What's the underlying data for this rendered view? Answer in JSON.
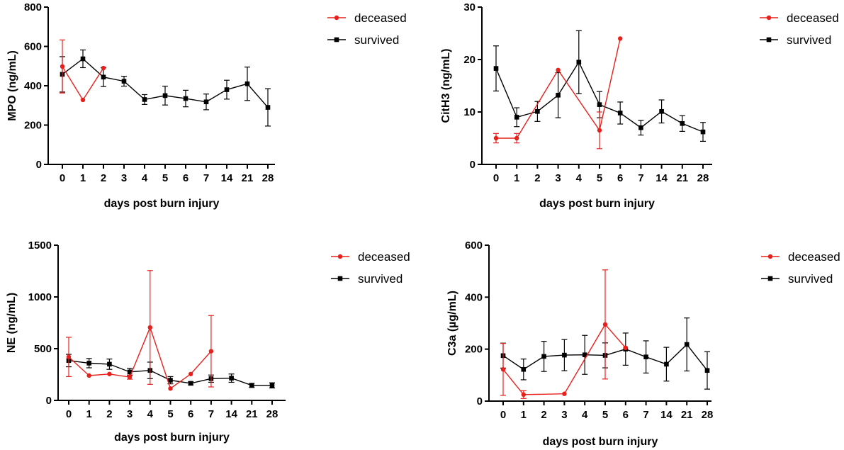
{
  "colors": {
    "deceased": "#e8201c",
    "survived": "#000000"
  },
  "chart_data": [
    {
      "type": "line",
      "ylabel": "MPO (ng/mL)",
      "xlabel": "days post burn injury",
      "ylim": [
        0,
        800
      ],
      "yticks": [
        0,
        200,
        400,
        600,
        800
      ],
      "categories": [
        "0",
        "1",
        "2",
        "3",
        "4",
        "5",
        "6",
        "7",
        "14",
        "21",
        "28"
      ],
      "legend_position": "top-right",
      "series": [
        {
          "name": "deceased",
          "marker": "circle",
          "color": "#e8201c",
          "values": [
            498,
            328,
            490,
            null,
            null,
            null,
            null,
            null,
            null,
            null,
            null
          ],
          "errors": [
            135,
            0,
            0,
            null,
            null,
            null,
            null,
            null,
            null,
            null,
            null
          ]
        },
        {
          "name": "survived",
          "marker": "square",
          "color": "#000000",
          "values": [
            458,
            537,
            444,
            423,
            330,
            350,
            335,
            318,
            380,
            410,
            290
          ],
          "errors": [
            90,
            45,
            48,
            25,
            25,
            48,
            42,
            40,
            48,
            85,
            95
          ]
        }
      ]
    },
    {
      "type": "line",
      "ylabel": "CitH3 (ng/mL)",
      "xlabel": "days post burn injury",
      "ylim": [
        0,
        30
      ],
      "yticks": [
        0,
        10,
        20,
        30
      ],
      "categories": [
        "0",
        "1",
        "2",
        "3",
        "4",
        "5",
        "6",
        "7",
        "14",
        "21",
        "28"
      ],
      "legend_position": "top-right",
      "series": [
        {
          "name": "deceased",
          "marker": "circle",
          "color": "#e8201c",
          "values": [
            5,
            5,
            null,
            18,
            null,
            6.5,
            24,
            null,
            null,
            null,
            null
          ],
          "errors": [
            0.9,
            0.9,
            null,
            0,
            null,
            3.5,
            0,
            null,
            null,
            null,
            null
          ]
        },
        {
          "name": "survived",
          "marker": "square",
          "color": "#000000",
          "values": [
            18.3,
            9,
            10.1,
            13.2,
            19.5,
            11.4,
            9.8,
            7,
            10.1,
            7.8,
            6.2
          ],
          "errors": [
            4.3,
            1.8,
            1.9,
            4.3,
            6,
            2.5,
            2.1,
            1.4,
            2.2,
            1.5,
            1.8
          ]
        }
      ]
    },
    {
      "type": "line",
      "ylabel": "NE (ng/mL)",
      "xlabel": "days post burn injury",
      "ylim": [
        0,
        1500
      ],
      "yticks": [
        0,
        500,
        1000,
        1500
      ],
      "categories": [
        "0",
        "1",
        "2",
        "3",
        "4",
        "5",
        "6",
        "7",
        "14",
        "21",
        "28"
      ],
      "legend_position": "top-right",
      "series": [
        {
          "name": "deceased",
          "marker": "circle",
          "color": "#e8201c",
          "values": [
            420,
            240,
            255,
            225,
            705,
            115,
            255,
            475,
            null,
            null,
            null
          ],
          "errors": [
            190,
            0,
            0,
            20,
            550,
            0,
            0,
            345,
            null,
            null,
            null
          ]
        },
        {
          "name": "survived",
          "marker": "square",
          "color": "#000000",
          "values": [
            385,
            360,
            350,
            275,
            290,
            195,
            165,
            210,
            215,
            145,
            145
          ],
          "errors": [
            60,
            45,
            50,
            35,
            80,
            35,
            15,
            35,
            40,
            20,
            25
          ]
        }
      ]
    },
    {
      "type": "line",
      "ylabel": "C3a (µg/mL)",
      "xlabel": "days post burn injury",
      "ylim": [
        0,
        600
      ],
      "yticks": [
        0,
        200,
        400,
        600
      ],
      "categories": [
        "0",
        "1",
        "2",
        "3",
        "4",
        "5",
        "6",
        "7",
        "14",
        "21",
        "28"
      ],
      "legend_position": "top-right",
      "series": [
        {
          "name": "deceased",
          "marker": "circle",
          "color": "#e8201c",
          "values": [
            122,
            25,
            null,
            28,
            null,
            295,
            205,
            null,
            null,
            null,
            null
          ],
          "errors": [
            100,
            15,
            null,
            0,
            null,
            210,
            0,
            null,
            null,
            null,
            null
          ]
        },
        {
          "name": "survived",
          "marker": "square",
          "color": "#000000",
          "values": [
            175,
            122,
            172,
            177,
            178,
            176,
            200,
            170,
            142,
            218,
            118
          ],
          "errors": [
            48,
            40,
            58,
            60,
            75,
            48,
            62,
            62,
            65,
            102,
            72
          ]
        }
      ]
    }
  ]
}
